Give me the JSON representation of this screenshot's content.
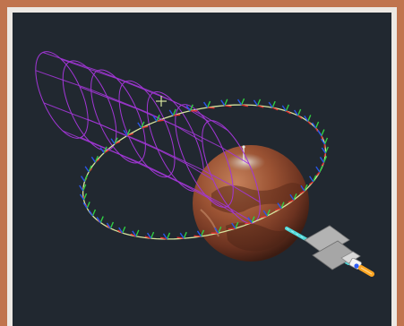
{
  "scene": {
    "objects": [
      "planet",
      "orbit-ring",
      "cylindrical-wireframe",
      "spacecraft",
      "velocity-vector",
      "zenith-pointer"
    ],
    "colors": {
      "frame": "#c0744e",
      "bezel": "#ece8e3",
      "viewport_background": "#212830",
      "wireframe": "#a236d6",
      "orbit_ring": "#d8e59f",
      "axis_x": "#e03030",
      "axis_y": "#2fcf43",
      "axis_z": "#2855e8",
      "velocity_vector": "#52d8d9",
      "spacecraft_body": "#a1a1a1",
      "solar_panel": "#ffa623"
    }
  }
}
